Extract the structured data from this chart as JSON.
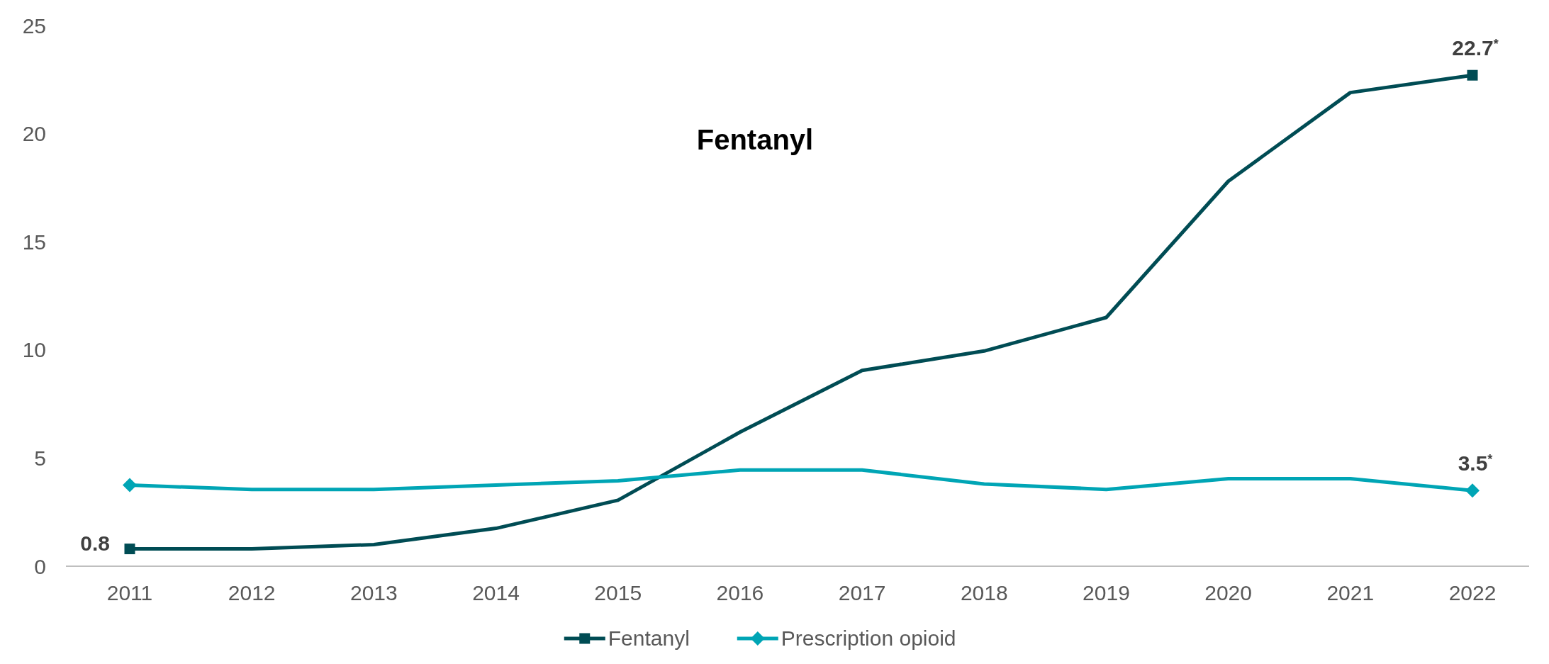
{
  "chart_data": {
    "type": "line",
    "title": "Fentanyl",
    "categories": [
      "2011",
      "2012",
      "2013",
      "2014",
      "2015",
      "2016",
      "2017",
      "2018",
      "2019",
      "2020",
      "2021",
      "2022"
    ],
    "series": [
      {
        "name": "Fentanyl",
        "color": "#004c54",
        "values": [
          0.8,
          0.8,
          1.0,
          1.75,
          3.05,
          6.2,
          9.05,
          9.95,
          11.5,
          17.8,
          21.9,
          22.7
        ],
        "value_labels": [
          "0.8",
          null,
          null,
          null,
          null,
          null,
          null,
          null,
          null,
          null,
          null,
          "22.7$^{*}$"
        ]
      },
      {
        "name": "Prescription opioid",
        "color": "#00a5b5",
        "values": [
          3.75,
          3.55,
          3.55,
          3.75,
          3.95,
          4.45,
          4.45,
          3.8,
          3.55,
          4.05,
          4.05,
          3.5
        ],
        "value_labels": [
          null,
          null,
          null,
          null,
          null,
          null,
          null,
          null,
          null,
          null,
          null,
          "3.5$^{*}$"
        ]
      }
    ],
    "ylim": [
      0,
      25
    ],
    "yticks": [
      0,
      5,
      10,
      15,
      20,
      25
    ],
    "grid": false,
    "legend": "bottom",
    "line_style": "solid"
  }
}
